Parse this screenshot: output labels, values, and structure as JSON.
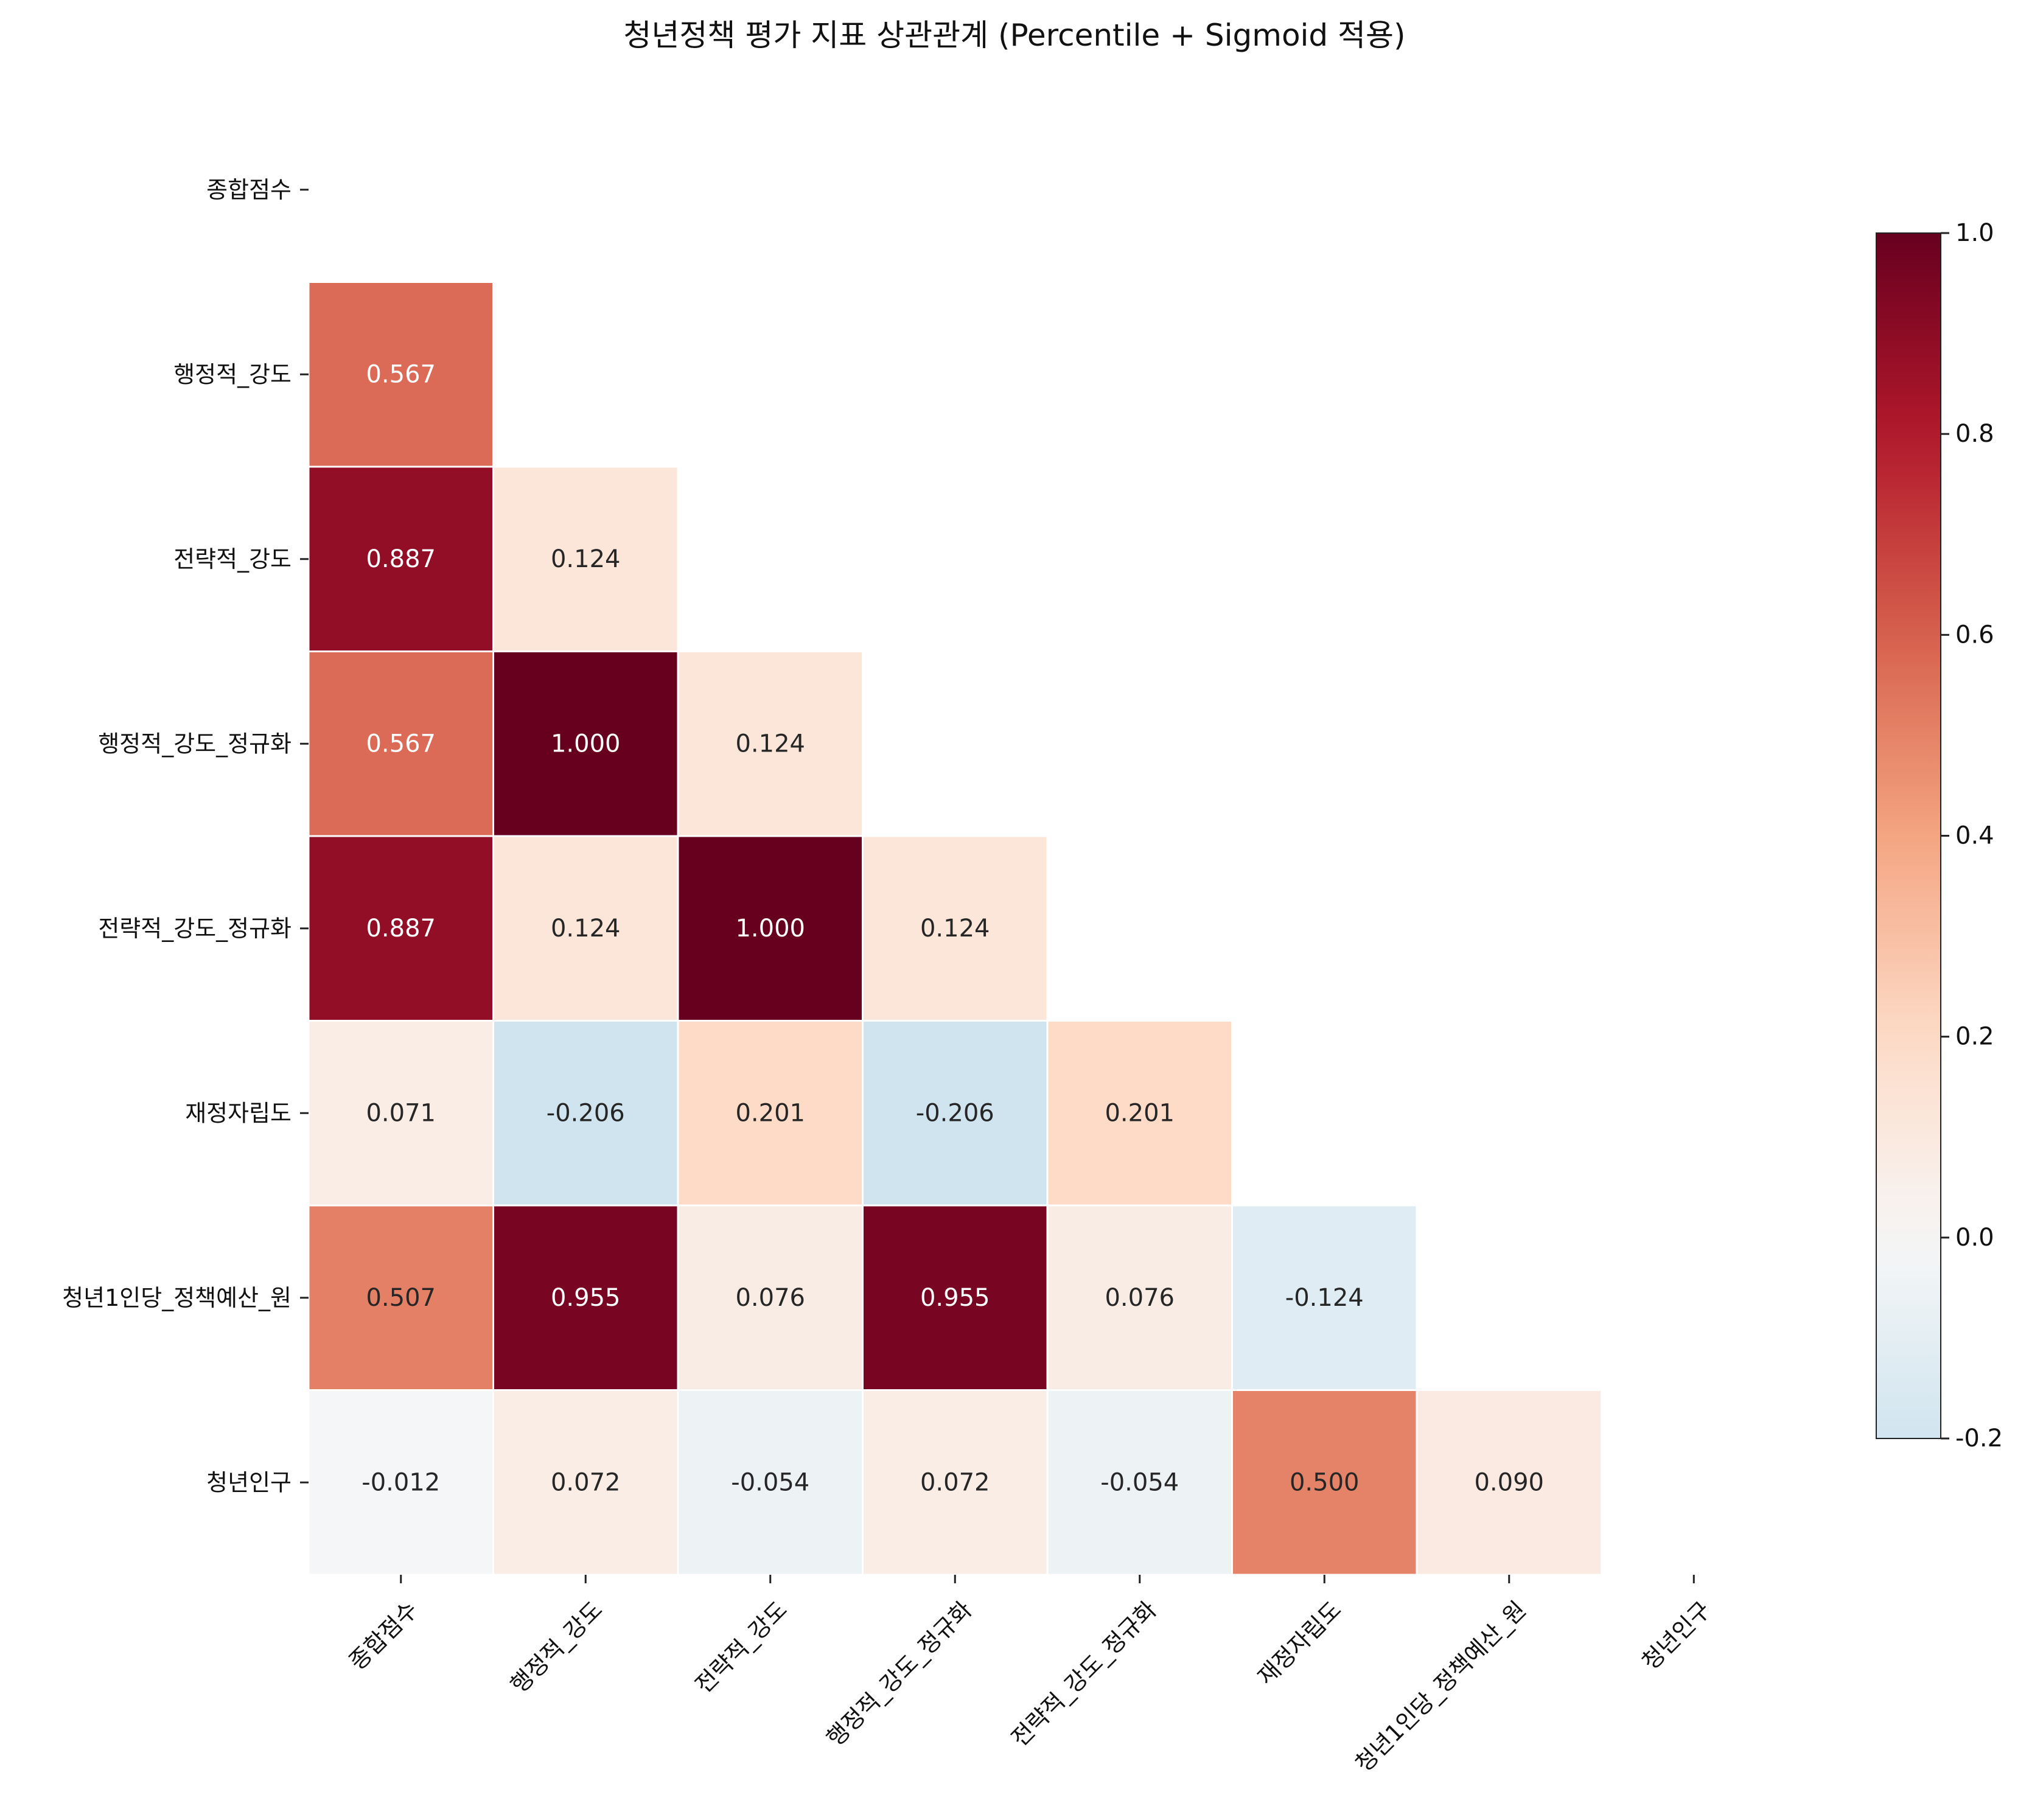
{
  "chart_data": {
    "type": "heatmap",
    "title": "청년정책 평가 지표 상관관계 (Percentile + Sigmoid 적용)",
    "labels": [
      "종합점수",
      "행정적_강도",
      "전략적_강도",
      "행정적_강도_정규화",
      "전략적_강도_정규화",
      "재정자립도",
      "청년1인당_정책예산_원",
      "청년인구"
    ],
    "mask": "upper-triangle-including-diagonal",
    "matrix": [
      [
        null,
        null,
        null,
        null,
        null,
        null,
        null,
        null
      ],
      [
        0.567,
        null,
        null,
        null,
        null,
        null,
        null,
        null
      ],
      [
        0.887,
        0.124,
        null,
        null,
        null,
        null,
        null,
        null
      ],
      [
        0.567,
        1.0,
        0.124,
        null,
        null,
        null,
        null,
        null
      ],
      [
        0.887,
        0.124,
        1.0,
        0.124,
        null,
        null,
        null,
        null
      ],
      [
        0.071,
        -0.206,
        0.201,
        -0.206,
        0.201,
        null,
        null,
        null
      ],
      [
        0.507,
        0.955,
        0.076,
        0.955,
        0.076,
        -0.124,
        null,
        null
      ],
      [
        -0.012,
        0.072,
        -0.054,
        0.072,
        -0.054,
        0.5,
        0.09,
        null
      ]
    ],
    "value_format": "0.000",
    "colormap": "RdBu_r",
    "vmin": -0.2,
    "vmax": 1.0,
    "center": 0.0,
    "colorbar_ticks": [
      "1.0",
      "0.8",
      "0.6",
      "0.4",
      "0.2",
      "0.0",
      "-0.2"
    ],
    "colorbar_tick_values": [
      1.0,
      0.8,
      0.6,
      0.4,
      0.2,
      0.0,
      -0.2
    ],
    "grid": false,
    "legend": "colorbar-right"
  }
}
